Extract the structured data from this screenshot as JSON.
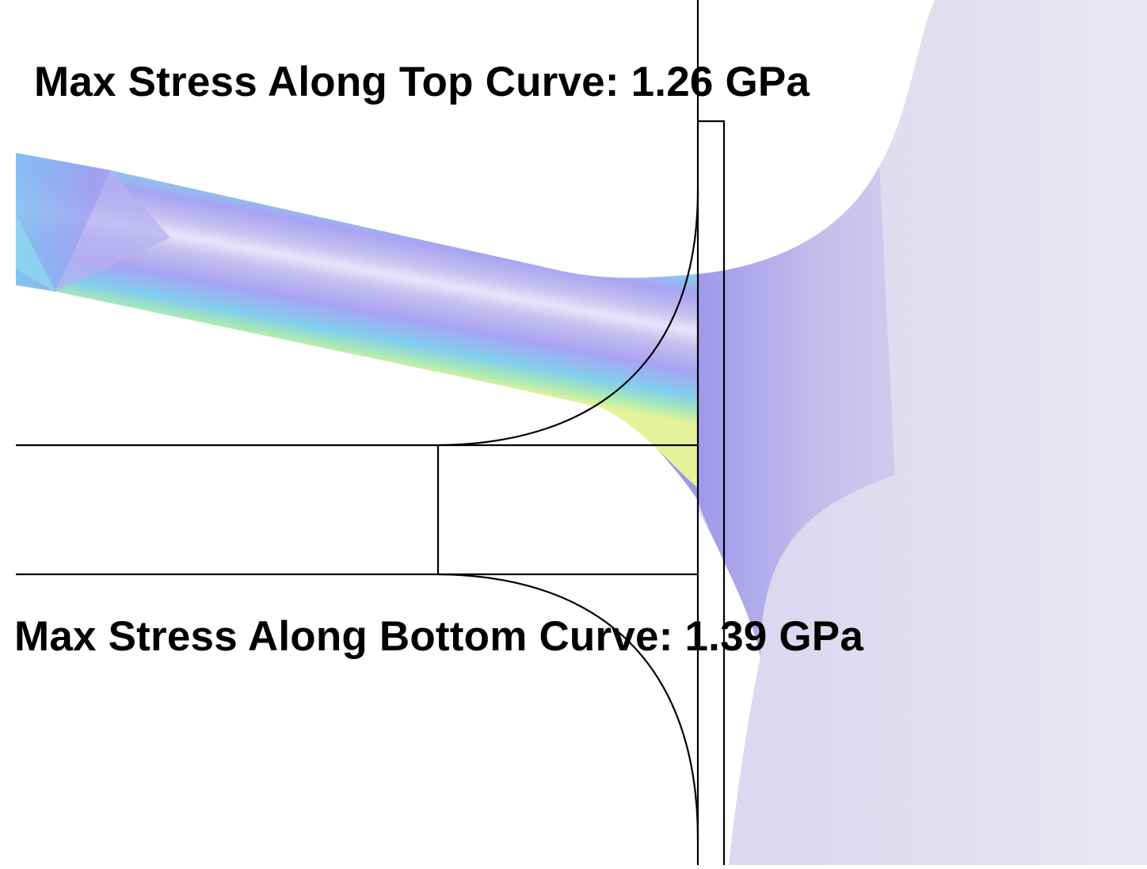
{
  "annotations": {
    "top_curve_label": "Max Stress Along Top Curve: 1.26 GPa",
    "bottom_curve_label": "Max Stress Along Bottom Curve: 1.39 GPa"
  },
  "colors": {
    "outline": "#000000",
    "background": "#ffffff",
    "stress_low": "#c6bfee",
    "stress_mid": "#a7a3f2",
    "stress_cyan": "#7ecbf0",
    "stress_high": "#d8ef8a",
    "far_field": "#e7e5f1"
  }
}
